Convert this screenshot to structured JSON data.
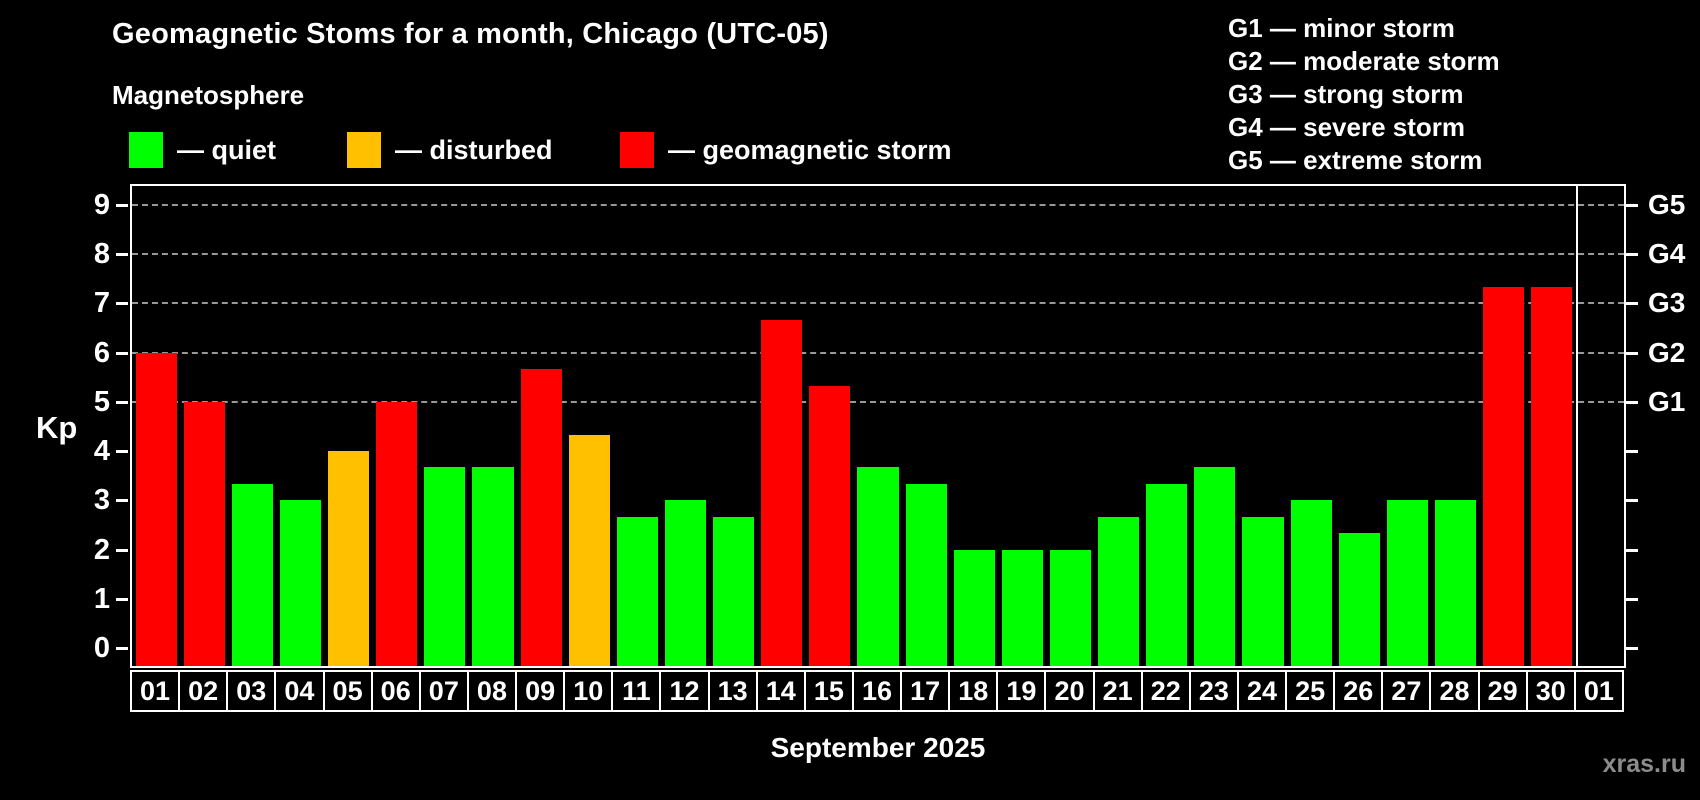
{
  "header": {
    "title": "Geomagnetic Stoms for a month, Chicago (UTC-05)",
    "subtitle": "Magnetosphere"
  },
  "legend": {
    "items": [
      {
        "label": "— quiet",
        "status": "quiet",
        "color": "#00ff00"
      },
      {
        "label": "— disturbed",
        "status": "disturbed",
        "color": "#ffc000"
      },
      {
        "label": "— geomagnetic storm",
        "status": "storm",
        "color": "#ff0000"
      }
    ]
  },
  "g_scale_legend": [
    "G1 — minor storm",
    "G2 — moderate storm",
    "G3 — strong storm",
    "G4 — severe storm",
    "G5 — extreme storm"
  ],
  "watermark": "xras.ru",
  "colors": {
    "background": "#000000",
    "axis": "#ffffff",
    "gridline": "#b3b3b3",
    "quiet": "#00ff00",
    "disturbed": "#ffc000",
    "storm": "#ff0000",
    "watermark": "#8c8c8c"
  },
  "chart_data": {
    "type": "bar",
    "title": "Geomagnetic Stoms for a month, Chicago (UTC-05)",
    "xlabel": "September 2025",
    "ylabel": "Kp",
    "ylim": [
      -0.36,
      9.38
    ],
    "yticks": [
      0,
      1,
      2,
      3,
      4,
      5,
      6,
      7,
      8,
      9
    ],
    "gridlines_kp": [
      5,
      6,
      7,
      8,
      9
    ],
    "grid": "dashed, only at Kp 5-9",
    "legend_position": "top-left",
    "right_axis": [
      {
        "kp": 5,
        "label": "G1"
      },
      {
        "kp": 6,
        "label": "G2"
      },
      {
        "kp": 7,
        "label": "G3"
      },
      {
        "kp": 8,
        "label": "G4"
      },
      {
        "kp": 9,
        "label": "G5"
      }
    ],
    "categories": [
      "01",
      "02",
      "03",
      "04",
      "05",
      "06",
      "07",
      "08",
      "09",
      "10",
      "11",
      "12",
      "13",
      "14",
      "15",
      "16",
      "17",
      "18",
      "19",
      "20",
      "21",
      "22",
      "23",
      "24",
      "25",
      "26",
      "27",
      "28",
      "29",
      "30",
      "01"
    ],
    "values": [
      6.0,
      5.0,
      3.33,
      3.0,
      4.0,
      5.0,
      3.67,
      3.67,
      5.67,
      4.33,
      2.67,
      3.0,
      2.67,
      6.67,
      5.33,
      3.67,
      3.33,
      2.0,
      2.0,
      2.0,
      2.67,
      3.33,
      3.67,
      2.67,
      3.0,
      2.33,
      3.0,
      3.0,
      7.33,
      7.33,
      null
    ],
    "statuses": [
      "storm",
      "storm",
      "quiet",
      "quiet",
      "disturbed",
      "storm",
      "quiet",
      "quiet",
      "storm",
      "disturbed",
      "quiet",
      "quiet",
      "quiet",
      "storm",
      "storm",
      "quiet",
      "quiet",
      "quiet",
      "quiet",
      "quiet",
      "quiet",
      "quiet",
      "quiet",
      "quiet",
      "quiet",
      "quiet",
      "quiet",
      "quiet",
      "storm",
      "storm",
      null
    ],
    "status_colors": {
      "quiet": "#00ff00",
      "disturbed": "#ffc000",
      "storm": "#ff0000"
    },
    "separator_after_index": 29
  }
}
